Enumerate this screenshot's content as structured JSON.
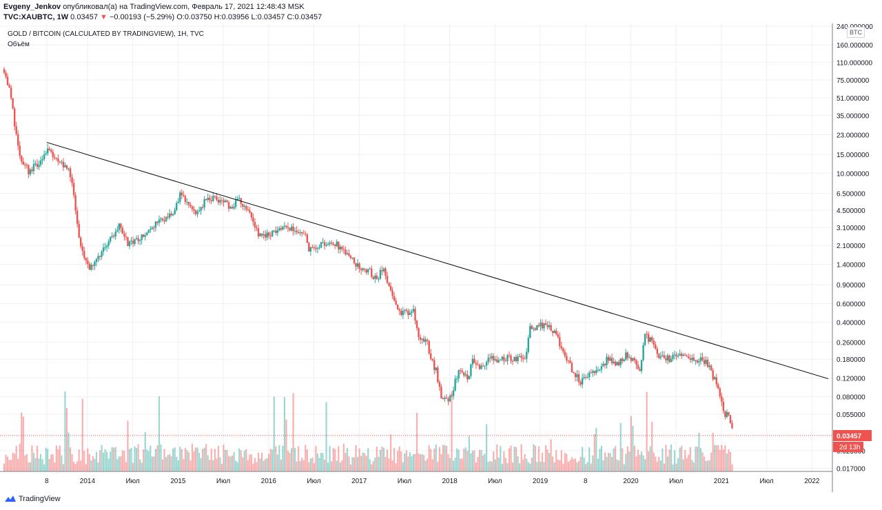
{
  "header": {
    "author": "Evgeny_Jenkov",
    "published_text": "опубликовал(а) на TradingView.com, Февраль 17, 2021 12:48:43 MSK",
    "symbol": "TVC:XAUBTC, 1W",
    "price": "0.03457",
    "change_arrow": "▼",
    "change": "−0.00193 (−5.29%)",
    "open": "O:0.03750",
    "high": "H:0.03956",
    "low": "L:0.03457",
    "close": "C:0.03457"
  },
  "legend": {
    "title": "GOLD / BITCOIN (CALCULATED BY TRADINGVIEW), 1H, TVC",
    "volume_label": "Объём"
  },
  "currency_label": "BTC",
  "footer": {
    "brand": "TradingView",
    "logo_icon": "tradingview-logo-icon"
  },
  "colors": {
    "up": "#26a69a",
    "down": "#ef5350",
    "trendline": "#000000",
    "grid": "#eef0f4"
  },
  "price_badge": "0.03457",
  "countdown_badge": "2d 13h",
  "chart_data": {
    "type": "candlestick",
    "scale": "log",
    "x_labels": [
      {
        "t": 2013.55,
        "label": "8"
      },
      {
        "t": 2014.0,
        "label": "2014"
      },
      {
        "t": 2014.5,
        "label": "Июл"
      },
      {
        "t": 2015.0,
        "label": "2015"
      },
      {
        "t": 2015.5,
        "label": "Июл"
      },
      {
        "t": 2016.0,
        "label": "2016"
      },
      {
        "t": 2016.5,
        "label": "Июл"
      },
      {
        "t": 2017.0,
        "label": "2017"
      },
      {
        "t": 2017.5,
        "label": "Июл"
      },
      {
        "t": 2018.0,
        "label": "2018"
      },
      {
        "t": 2018.5,
        "label": "Июл"
      },
      {
        "t": 2019.0,
        "label": "2019"
      },
      {
        "t": 2019.5,
        "label": "8"
      },
      {
        "t": 2020.0,
        "label": "2020"
      },
      {
        "t": 2020.5,
        "label": "Июл"
      },
      {
        "t": 2021.0,
        "label": "2021"
      },
      {
        "t": 2021.5,
        "label": "Июл"
      },
      {
        "t": 2022.0,
        "label": "2022"
      }
    ],
    "y_ticks": [
      "240.000000",
      "160.000000",
      "110.000000",
      "75.000000",
      "51.000000",
      "35.000000",
      "23.000000",
      "15.000000",
      "10.000000",
      "6.500000",
      "4.500000",
      "3.100000",
      "2.100000",
      "1.400000",
      "0.900000",
      "0.600000",
      "0.400000",
      "0.260000",
      "0.180000",
      "0.120000",
      "0.080000",
      "0.055000",
      "0.035000",
      "0.025000",
      "0.017000"
    ],
    "path": [
      [
        2013.08,
        95
      ],
      [
        2013.15,
        55
      ],
      [
        2013.2,
        28
      ],
      [
        2013.25,
        14
      ],
      [
        2013.3,
        12
      ],
      [
        2013.35,
        10.5
      ],
      [
        2013.45,
        12
      ],
      [
        2013.55,
        17
      ],
      [
        2013.7,
        13
      ],
      [
        2013.8,
        11
      ],
      [
        2013.85,
        6.5
      ],
      [
        2013.9,
        2.5
      ],
      [
        2013.95,
        1.8
      ],
      [
        2014.0,
        1.3
      ],
      [
        2014.05,
        1.4
      ],
      [
        2014.15,
        1.8
      ],
      [
        2014.25,
        2.4
      ],
      [
        2014.35,
        3.2
      ],
      [
        2014.45,
        2.2
      ],
      [
        2014.55,
        2.3
      ],
      [
        2014.65,
        2.7
      ],
      [
        2014.75,
        3.4
      ],
      [
        2014.85,
        3.8
      ],
      [
        2014.95,
        4.2
      ],
      [
        2015.03,
        6.4
      ],
      [
        2015.1,
        5.5
      ],
      [
        2015.2,
        4.3
      ],
      [
        2015.3,
        5.5
      ],
      [
        2015.4,
        5.8
      ],
      [
        2015.5,
        5.6
      ],
      [
        2015.6,
        4.5
      ],
      [
        2015.65,
        5.6
      ],
      [
        2015.75,
        5.0
      ],
      [
        2015.82,
        3.8
      ],
      [
        2015.9,
        2.6
      ],
      [
        2016.0,
        2.7
      ],
      [
        2016.1,
        3.0
      ],
      [
        2016.2,
        3.1
      ],
      [
        2016.3,
        2.9
      ],
      [
        2016.4,
        2.7
      ],
      [
        2016.45,
        1.9
      ],
      [
        2016.52,
        2.05
      ],
      [
        2016.6,
        2.2
      ],
      [
        2016.7,
        2.3
      ],
      [
        2016.8,
        2.0
      ],
      [
        2016.9,
        1.6
      ],
      [
        2017.0,
        1.3
      ],
      [
        2017.1,
        1.25
      ],
      [
        2017.2,
        0.95
      ],
      [
        2017.25,
        1.3
      ],
      [
        2017.3,
        1.05
      ],
      [
        2017.4,
        0.62
      ],
      [
        2017.45,
        0.48
      ],
      [
        2017.55,
        0.5
      ],
      [
        2017.6,
        0.55
      ],
      [
        2017.65,
        0.3
      ],
      [
        2017.75,
        0.26
      ],
      [
        2017.8,
        0.17
      ],
      [
        2017.85,
        0.14
      ],
      [
        2017.9,
        0.085
      ],
      [
        2017.96,
        0.07
      ],
      [
        2018.03,
        0.09
      ],
      [
        2018.1,
        0.14
      ],
      [
        2018.2,
        0.12
      ],
      [
        2018.25,
        0.18
      ],
      [
        2018.35,
        0.15
      ],
      [
        2018.45,
        0.2
      ],
      [
        2018.55,
        0.17
      ],
      [
        2018.65,
        0.19
      ],
      [
        2018.75,
        0.18
      ],
      [
        2018.85,
        0.2
      ],
      [
        2018.88,
        0.35
      ],
      [
        2018.95,
        0.36
      ],
      [
        2019.05,
        0.38
      ],
      [
        2019.15,
        0.32
      ],
      [
        2019.25,
        0.22
      ],
      [
        2019.35,
        0.14
      ],
      [
        2019.45,
        0.11
      ],
      [
        2019.55,
        0.13
      ],
      [
        2019.65,
        0.15
      ],
      [
        2019.75,
        0.18
      ],
      [
        2019.85,
        0.16
      ],
      [
        2019.95,
        0.2
      ],
      [
        2020.05,
        0.16
      ],
      [
        2020.1,
        0.14
      ],
      [
        2020.16,
        0.3
      ],
      [
        2020.22,
        0.27
      ],
      [
        2020.3,
        0.19
      ],
      [
        2020.4,
        0.18
      ],
      [
        2020.5,
        0.19
      ],
      [
        2020.6,
        0.2
      ],
      [
        2020.7,
        0.17
      ],
      [
        2020.78,
        0.185
      ],
      [
        2020.85,
        0.16
      ],
      [
        2020.9,
        0.13
      ],
      [
        2020.95,
        0.1
      ],
      [
        2021.0,
        0.075
      ],
      [
        2021.04,
        0.052
      ],
      [
        2021.07,
        0.058
      ],
      [
        2021.1,
        0.048
      ],
      [
        2021.13,
        0.034
      ]
    ],
    "trendline": [
      [
        2013.55,
        19.5
      ],
      [
        2022.18,
        0.118
      ]
    ],
    "volume_max": 100
  }
}
